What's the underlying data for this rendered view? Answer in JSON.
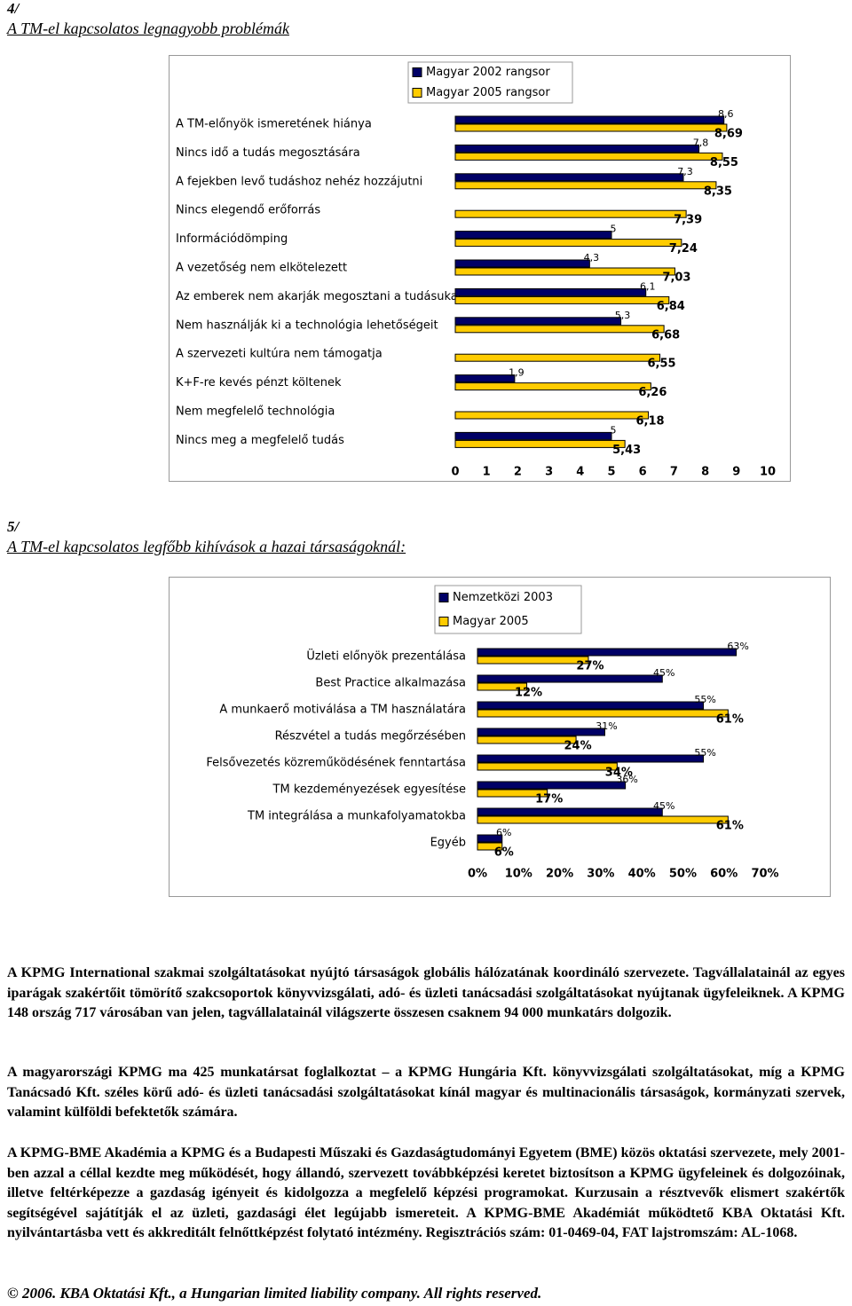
{
  "section4": {
    "number": "4/",
    "title": "A TM-el kapcsolatos legnagyobb problémák"
  },
  "section5": {
    "number": "5/",
    "title": "A TM-el kapcsolatos legfőbb kihívások a hazai társaságoknál:"
  },
  "chart_data": [
    {
      "type": "bar",
      "orientation": "horizontal",
      "categories": [
        "A TM-előnyök ismeretének hiánya",
        "Nincs idő a tudás megosztására",
        "A fejekben levő tudáshoz nehéz hozzájutni",
        "Nincs elegendő erőforrás",
        "Információdömping",
        "A vezetőség nem elkötelezett",
        "Az emberek nem akarják megosztani a tudásukat",
        "Nem használják ki a technológia lehetőségeit",
        "A szervezeti kultúra nem támogatja",
        "K+F-re kevés pénzt költenek",
        "Nem megfelelő technológia",
        "Nincs meg a megfelelő tudás"
      ],
      "series": [
        {
          "name": "Magyar 2002 rangsor",
          "color": "#000066",
          "values": [
            8.6,
            7.8,
            7.3,
            null,
            5,
            4.3,
            6.1,
            5.3,
            null,
            1.9,
            null,
            5
          ],
          "value_labels": [
            "8,6",
            "7,8",
            "7,3",
            null,
            "5",
            "4,3",
            "6,1",
            "5,3",
            null,
            "1,9",
            null,
            "5"
          ]
        },
        {
          "name": "Magyar 2005 rangsor",
          "color": "#ffcc00",
          "values": [
            8.69,
            8.55,
            8.35,
            7.39,
            7.24,
            7.03,
            6.84,
            6.68,
            6.55,
            6.26,
            6.18,
            5.43
          ],
          "value_labels": [
            "8,69",
            "8,55",
            "8,35",
            "7,39",
            "7,24",
            "7,03",
            "6,84",
            "6,68",
            "6,55",
            "6,26",
            "6,18",
            "5,43"
          ]
        }
      ],
      "xlim": [
        0,
        10
      ],
      "xticks": [
        0,
        1,
        2,
        3,
        4,
        5,
        6,
        7,
        8,
        9,
        10
      ],
      "legend": "top"
    },
    {
      "type": "bar",
      "orientation": "horizontal",
      "categories": [
        "Üzleti előnyök prezentálása",
        "Best Practice alkalmazása",
        "A munkaerő motiválása a TM használatára",
        "Részvétel a tudás megőrzésében",
        "Felsővezetés közreműködésének fenntartása",
        "TM kezdeményezések egyesítése",
        "TM integrálása a munkafolyamatokba",
        "Egyéb"
      ],
      "series": [
        {
          "name": "Nemzetközi 2003",
          "color": "#000066",
          "values": [
            63,
            45,
            55,
            31,
            55,
            36,
            45,
            6
          ],
          "value_labels": [
            "63%",
            "45%",
            "55%",
            "31%",
            "55%",
            "36%",
            "45%",
            "6%"
          ]
        },
        {
          "name": "Magyar 2005",
          "color": "#ffcc00",
          "values": [
            27,
            12,
            61,
            24,
            34,
            17,
            61,
            6
          ],
          "value_labels": [
            "27%",
            "12%",
            "61%",
            "24%",
            "34%",
            "17%",
            "61%",
            "6%"
          ]
        }
      ],
      "xlim": [
        0,
        70
      ],
      "xticks": [
        {
          "value": 0,
          "label": "0%"
        },
        {
          "value": 10,
          "label": "10%"
        },
        {
          "value": 20,
          "label": "20%"
        },
        {
          "value": 30,
          "label": "30%"
        },
        {
          "value": 40,
          "label": "40%"
        },
        {
          "value": 50,
          "label": "50%"
        },
        {
          "value": 60,
          "label": "60%"
        },
        {
          "value": 70,
          "label": "70%"
        }
      ],
      "legend": "top"
    }
  ],
  "paragraphs": [
    "A KPMG International szakmai szolgáltatásokat nyújtó társaságok globális hálózatának koordináló szervezete. Tagvállalatainál az egyes iparágak szakértőit tömörítő szakcsoportok könyvvizsgálati, adó- és üzleti tanácsadási szolgáltatásokat nyújtanak ügyfeleiknek. A KPMG 148 ország 717 városában van jelen, tagvállalatainál világszerte összesen csaknem 94 000 munkatárs dolgozik.",
    "A magyarországi KPMG ma 425 munkatársat foglalkoztat – a KPMG Hungária Kft. könyvvizsgálati szolgáltatásokat, míg a KPMG Tanácsadó Kft. széles körű adó- és üzleti tanácsadási szolgáltatásokat kínál magyar és multinacionális társaságok, kormányzati szervek, valamint külföldi befektetők számára.",
    "A KPMG-BME Akadémia a KPMG és a Budapesti Műszaki és Gazdaságtudományi Egyetem (BME) közös oktatási szervezete, mely 2001-ben azzal a céllal kezdte meg működését, hogy állandó, szervezett továbbképzési keretet biztosítson a KPMG ügyfeleinek és dolgozóinak, illetve feltérképezze a gazdaság igényeit és kidolgozza a megfelelő képzési programokat. Kurzusain a résztvevők elismert szakértők segítségével sajátítják el az üzleti, gazdasági élet legújabb ismereteit. A KPMG-BME Akadémiát működtető KBA Oktatási Kft. nyilvántartásba vett és akkreditált felnőttképzést folytató intézmény. Regisztrációs szám: 01-0469-04, FAT lajstromszám: AL-1068."
  ],
  "footer": "© 2006. KBA Oktatási Kft., a Hungarian limited liability company. All rights reserved."
}
